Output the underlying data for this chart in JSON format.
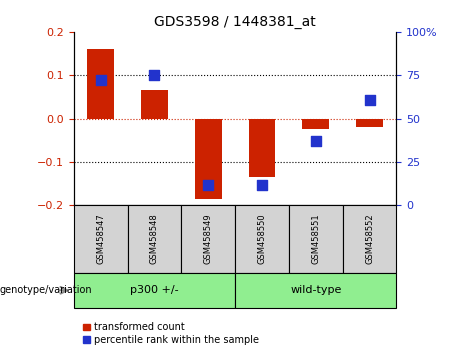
{
  "title": "GDS3598 / 1448381_at",
  "samples": [
    "GSM458547",
    "GSM458548",
    "GSM458549",
    "GSM458550",
    "GSM458551",
    "GSM458552"
  ],
  "transformed_counts": [
    0.16,
    0.065,
    -0.185,
    -0.135,
    -0.025,
    -0.02
  ],
  "percentile_ranks_pct": [
    72,
    75,
    11.5,
    11.5,
    37,
    61
  ],
  "groups_def": [
    {
      "label": "p300 +/-",
      "start": 0,
      "end": 2
    },
    {
      "label": "wild-type",
      "start": 3,
      "end": 5
    }
  ],
  "group_label": "genotype/variation",
  "ylim_left": [
    -0.2,
    0.2
  ],
  "ylim_right": [
    0,
    100
  ],
  "yticks_left": [
    -0.2,
    -0.1,
    0.0,
    0.1,
    0.2
  ],
  "yticks_right": [
    0,
    25,
    50,
    75,
    100
  ],
  "bar_color": "#cc2200",
  "dot_color": "#2233cc",
  "bar_width": 0.5,
  "dot_size": 50,
  "legend_labels": [
    "transformed count",
    "percentile rank within the sample"
  ],
  "background_color": "#ffffff",
  "grid_color": "#000000",
  "zero_line_color": "#cc2200",
  "label_color_left": "#cc2200",
  "label_color_right": "#2233cc",
  "sample_box_color": "#d3d3d3",
  "group_box_color": "#90ee90"
}
